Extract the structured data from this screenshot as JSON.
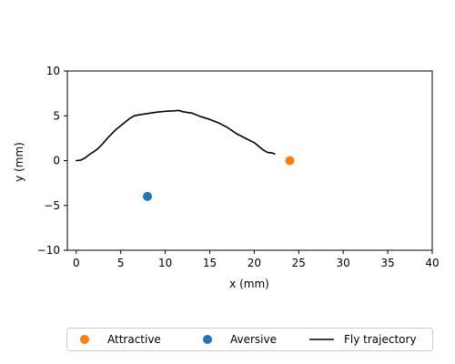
{
  "chart_data": {
    "type": "scatter",
    "xlabel": "x (mm)",
    "ylabel": "y (mm)",
    "xlim": [
      -1,
      40
    ],
    "ylim": [
      -10,
      10
    ],
    "x_ticks": [
      0,
      5,
      10,
      15,
      20,
      25,
      30,
      35,
      40
    ],
    "y_ticks": [
      -10,
      -5,
      0,
      5,
      10
    ],
    "grid": false,
    "legend_position": "bottom",
    "series": [
      {
        "name": "Attractive",
        "kind": "point",
        "color": "#ff7f0e",
        "points": [
          {
            "x": 24,
            "y": 0
          }
        ]
      },
      {
        "name": "Aversive",
        "kind": "point",
        "color": "#1f77b4",
        "points": [
          {
            "x": 8,
            "y": -4
          }
        ]
      },
      {
        "name": "Fly trajectory",
        "kind": "line",
        "color": "#000000",
        "points": [
          {
            "x": 0,
            "y": 0
          },
          {
            "x": 0.5,
            "y": 0.05
          },
          {
            "x": 1.0,
            "y": 0.3
          },
          {
            "x": 1.5,
            "y": 0.7
          },
          {
            "x": 2.0,
            "y": 1.0
          },
          {
            "x": 2.5,
            "y": 1.4
          },
          {
            "x": 3.0,
            "y": 1.9
          },
          {
            "x": 3.5,
            "y": 2.5
          },
          {
            "x": 4.0,
            "y": 3.0
          },
          {
            "x": 4.5,
            "y": 3.5
          },
          {
            "x": 5.0,
            "y": 3.9
          },
          {
            "x": 5.5,
            "y": 4.3
          },
          {
            "x": 6.0,
            "y": 4.7
          },
          {
            "x": 6.5,
            "y": 5.0
          },
          {
            "x": 7.0,
            "y": 5.1
          },
          {
            "x": 8.0,
            "y": 5.25
          },
          {
            "x": 9.0,
            "y": 5.4
          },
          {
            "x": 10.0,
            "y": 5.5
          },
          {
            "x": 11.0,
            "y": 5.55
          },
          {
            "x": 11.5,
            "y": 5.6
          },
          {
            "x": 12.0,
            "y": 5.45
          },
          {
            "x": 13.0,
            "y": 5.3
          },
          {
            "x": 14.0,
            "y": 4.9
          },
          {
            "x": 15.0,
            "y": 4.6
          },
          {
            "x": 16.0,
            "y": 4.2
          },
          {
            "x": 17.0,
            "y": 3.7
          },
          {
            "x": 18.0,
            "y": 3.0
          },
          {
            "x": 19.0,
            "y": 2.5
          },
          {
            "x": 20.0,
            "y": 2.0
          },
          {
            "x": 20.5,
            "y": 1.6
          },
          {
            "x": 21.0,
            "y": 1.2
          },
          {
            "x": 21.5,
            "y": 0.9
          },
          {
            "x": 22.0,
            "y": 0.85
          },
          {
            "x": 22.3,
            "y": 0.75
          }
        ]
      }
    ]
  }
}
